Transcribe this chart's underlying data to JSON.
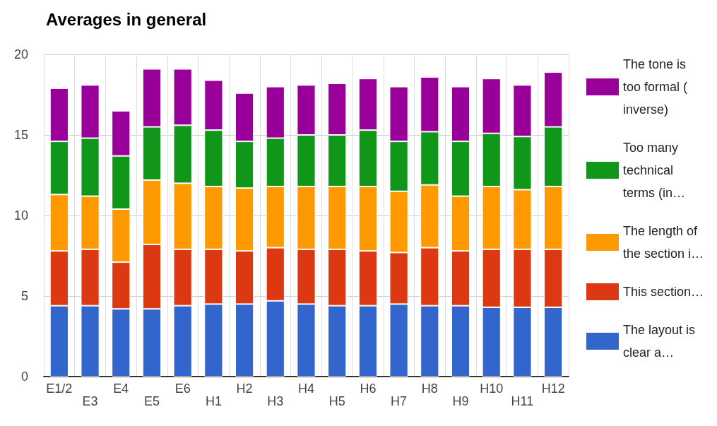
{
  "chart_data": {
    "type": "bar",
    "title": "Averages in general",
    "stacked": true,
    "categories": [
      "E1/2",
      "E3",
      "E4",
      "E5",
      "E6",
      "H1",
      "H2",
      "H3",
      "H4",
      "H5",
      "H6",
      "H7",
      "H8",
      "H9",
      "H10",
      "H11",
      "H12"
    ],
    "series": [
      {
        "name": "The layout is clear a…",
        "color": "#3366cc",
        "values": [
          4.4,
          4.4,
          4.2,
          4.2,
          4.4,
          4.5,
          4.5,
          4.7,
          4.5,
          4.4,
          4.4,
          4.5,
          4.4,
          4.4,
          4.3,
          4.3,
          4.3
        ]
      },
      {
        "name": "This section…",
        "color": "#dc3912",
        "values": [
          3.4,
          3.5,
          2.9,
          4.0,
          3.5,
          3.4,
          3.3,
          3.3,
          3.4,
          3.5,
          3.4,
          3.2,
          3.6,
          3.4,
          3.6,
          3.6,
          3.6
        ]
      },
      {
        "name": "The length of the section i…",
        "color": "#ff9900",
        "values": [
          3.5,
          3.3,
          3.3,
          4.0,
          4.1,
          3.9,
          3.9,
          3.8,
          3.9,
          3.9,
          4.0,
          3.8,
          3.9,
          3.4,
          3.9,
          3.7,
          3.9
        ]
      },
      {
        "name": "Too many technical terms (in…",
        "color": "#109618",
        "values": [
          3.3,
          3.6,
          3.3,
          3.3,
          3.6,
          3.5,
          2.9,
          3.0,
          3.2,
          3.2,
          3.5,
          3.1,
          3.3,
          3.4,
          3.3,
          3.3,
          3.7
        ]
      },
      {
        "name": "The tone is too formal ( inverse)",
        "color": "#990099",
        "values": [
          3.3,
          3.3,
          2.8,
          3.6,
          3.5,
          3.1,
          3.0,
          3.2,
          3.1,
          3.2,
          3.2,
          3.4,
          3.4,
          3.4,
          3.4,
          3.2,
          3.4
        ]
      }
    ],
    "ylim": [
      0,
      20
    ],
    "yticks": [
      0,
      5,
      10,
      15,
      20
    ],
    "grid": true,
    "legend": "right"
  }
}
